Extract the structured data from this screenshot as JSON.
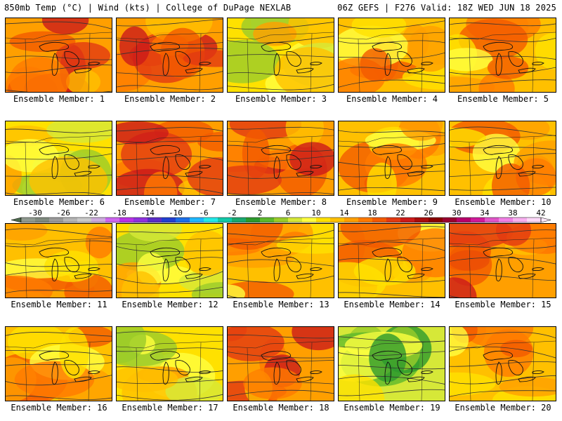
{
  "header": {
    "left": "850mb Temp (°C) | Wind (kts) | College of DuPage NEXLAB",
    "right": "06Z GEFS | F276 Valid: 18Z WED JUN 18 2025"
  },
  "members": [
    {
      "label": "Ensemble Member: 1",
      "palette": "hot"
    },
    {
      "label": "Ensemble Member: 2",
      "palette": "hot"
    },
    {
      "label": "Ensemble Member: 3",
      "palette": "cool"
    },
    {
      "label": "Ensemble Member: 4",
      "palette": "warm"
    },
    {
      "label": "Ensemble Member: 5",
      "palette": "warm"
    },
    {
      "label": "Ensemble Member: 6",
      "palette": "cool"
    },
    {
      "label": "Ensemble Member: 7",
      "palette": "hot"
    },
    {
      "label": "Ensemble Member: 8",
      "palette": "hot"
    },
    {
      "label": "Ensemble Member: 9",
      "palette": "warm"
    },
    {
      "label": "Ensemble Member: 10",
      "palette": "warm"
    },
    {
      "label": "Ensemble Member: 11",
      "palette": "warm"
    },
    {
      "label": "Ensemble Member: 12",
      "palette": "cool"
    },
    {
      "label": "Ensemble Member: 13",
      "palette": "warm"
    },
    {
      "label": "Ensemble Member: 14",
      "palette": "warm"
    },
    {
      "label": "Ensemble Member: 15",
      "palette": "hot"
    },
    {
      "label": "Ensemble Member: 16",
      "palette": "warm"
    },
    {
      "label": "Ensemble Member: 17",
      "palette": "cool"
    },
    {
      "label": "Ensemble Member: 18",
      "palette": "hot"
    },
    {
      "label": "Ensemble Member: 19",
      "palette": "cold"
    },
    {
      "label": "Ensemble Member: 20",
      "palette": "warm"
    }
  ],
  "colorbar": {
    "tick_labels": [
      "-30",
      "-26",
      "-22",
      "-18",
      "-14",
      "-10",
      "-6",
      "-2",
      "2",
      "6",
      "10",
      "14",
      "18",
      "22",
      "26",
      "30",
      "34",
      "38",
      "42"
    ],
    "colors": [
      "#909a90",
      "#7f8a7f",
      "#9a9a9a",
      "#b5b5b5",
      "#c9c9c9",
      "#ccaadd",
      "#cc66ee",
      "#b833e6",
      "#8f33dd",
      "#5a2ec8",
      "#2240d0",
      "#1c6fe8",
      "#1fb8ff",
      "#22e8e8",
      "#12c8a8",
      "#1aa870",
      "#2d9a2d",
      "#5cb82c",
      "#9acc2a",
      "#d6e838",
      "#ffff40",
      "#ffe100",
      "#ffc000",
      "#ff9f00",
      "#ff7a00",
      "#f25a00",
      "#e23a12",
      "#cc1a1a",
      "#a80d0d",
      "#880000",
      "#9a0030",
      "#b8006a",
      "#d01a9a",
      "#e055c8",
      "#f080e4",
      "#f8b0f0",
      "#fcd8f8"
    ]
  }
}
